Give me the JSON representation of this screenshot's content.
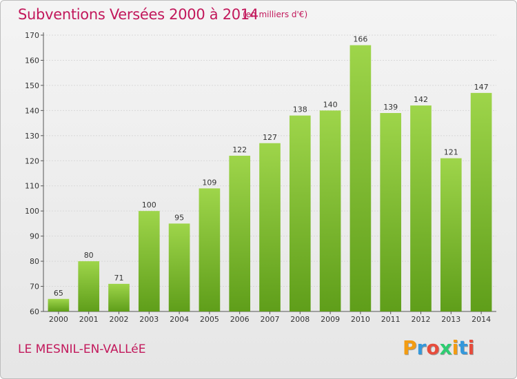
{
  "header": {
    "title": "Subventions Versées 2000 à 2014",
    "unit": "(en milliers d'€)"
  },
  "footer": {
    "commune": "LE MESNIL-EN-VALLéE",
    "logo_text": "Proxiti",
    "logo_colors": [
      "#f39c12",
      "#3498db",
      "#e74c3c",
      "#2ecc71",
      "#f39c12",
      "#3498db",
      "#e74c3c"
    ]
  },
  "colors": {
    "title": "#c2185b",
    "bar_top": "#9ed54a",
    "bar_bottom": "#5f9e1a",
    "grid": "#d8d8d8"
  },
  "chart_data": {
    "type": "bar",
    "categories": [
      "2000",
      "2001",
      "2002",
      "2003",
      "2004",
      "2005",
      "2006",
      "2007",
      "2008",
      "2009",
      "2010",
      "2011",
      "2012",
      "2013",
      "2014"
    ],
    "values": [
      65,
      80,
      71,
      100,
      95,
      109,
      122,
      127,
      138,
      140,
      166,
      139,
      142,
      121,
      147
    ],
    "ylim": [
      60,
      170
    ],
    "yticks": [
      60,
      70,
      80,
      90,
      100,
      110,
      120,
      130,
      140,
      150,
      160,
      170
    ],
    "grid": true,
    "data_labels": true
  }
}
